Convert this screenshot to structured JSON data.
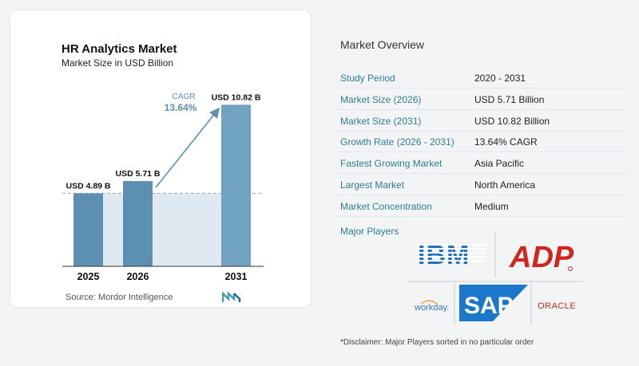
{
  "chart_data": {
    "type": "bar",
    "title": "HR Analytics Market",
    "subtitle": "Market Size in USD Billion",
    "categories": [
      "2025",
      "2026",
      "2031"
    ],
    "values": [
      4.89,
      5.71,
      10.82
    ],
    "value_labels": [
      "USD 4.89 B",
      "USD 5.71 B",
      "USD 10.82 B"
    ],
    "cagr_label": "CAGR",
    "cagr_value": "13.64%",
    "ylim": [
      0,
      11
    ],
    "colors": {
      "bar": "#5d8fb3",
      "bar_last": "#6fa3bf",
      "reference_fill": "#dfe9f1",
      "arrow": "#5d8fb3"
    }
  },
  "source": "Source:  Mordor Intelligence",
  "overview": {
    "title": "Market Overview",
    "rows": [
      {
        "label": "Study Period",
        "value": "2020 - 2031"
      },
      {
        "label": "Market Size (2026)",
        "value": "USD 5.71 Billion"
      },
      {
        "label": "Market Size (2031)",
        "value": "USD 10.82 Billion"
      },
      {
        "label": "Growth Rate (2026 - 2031)",
        "value": "13.64% CAGR"
      },
      {
        "label": "Fastest Growing Market",
        "value": "Asia Pacific"
      },
      {
        "label": "Largest Market",
        "value": "North America"
      },
      {
        "label": "Market Concentration",
        "value": "Medium"
      }
    ],
    "players_label": "Major Players",
    "players": [
      "IBM",
      "ADP",
      "workday.",
      "SAP",
      "ORACLE"
    ],
    "disclaimer": "*Disclaimer: Major Players sorted in no particular order"
  }
}
